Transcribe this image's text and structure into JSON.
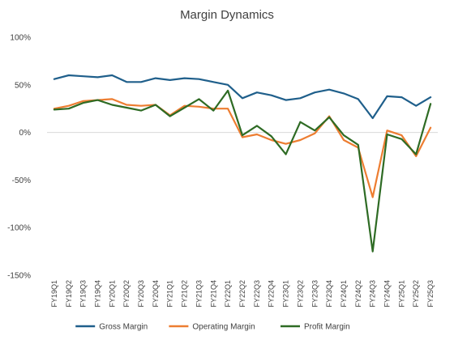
{
  "chart_data": {
    "type": "line",
    "title": "Margin Dynamics",
    "xlabel": "",
    "ylabel": "",
    "ylim": [
      -150,
      100
    ],
    "yticks": [
      100,
      50,
      0,
      -50,
      -100,
      -150
    ],
    "ytick_labels": [
      "100%",
      "50%",
      "0%",
      "-50%",
      "-100%",
      "-150%"
    ],
    "grid": false,
    "legend_position": "bottom",
    "x": [
      "FY19Q1",
      "FY19Q2",
      "FY19Q3",
      "FY19Q4",
      "FY20Q1",
      "FY20Q2",
      "FY20Q3",
      "FY20Q4",
      "FY21Q1",
      "FY21Q2",
      "FY21Q3",
      "FY21Q4",
      "FY22Q1",
      "FY22Q2",
      "FY22Q3",
      "FY22Q4",
      "FY23Q1",
      "FY23Q2",
      "FY23Q3",
      "FY23Q4",
      "FY24Q1",
      "FY24Q2",
      "FY24Q3",
      "FY24Q4",
      "FY25Q1",
      "FY25Q2",
      "FY25Q3"
    ],
    "x_tick_labels": [
      "FY19Q1",
      "FY19Q3",
      "FY20Q1",
      "FY20Q3",
      "FY21Q1",
      "FY21Q3",
      "FY22Q1",
      "FY22Q3",
      "FY23Q1",
      "FY23Q3",
      "FY24Q1",
      "FY24Q3",
      "FY25Q1",
      "FY25Q3",
      "FY19Q2",
      "FY19Q4",
      "FY20Q2",
      "FY20Q4",
      "FY21Q2",
      "FY21Q4",
      "FY22Q2",
      "FY22Q4",
      "FY23Q2",
      "FY23Q4",
      "FY24Q2",
      "FY24Q4",
      "FY25Q2"
    ],
    "series": [
      {
        "name": "Gross Margin",
        "color": "#1f5f8b",
        "values": [
          56,
          60,
          59,
          58,
          60,
          53,
          53,
          57,
          55,
          57,
          56,
          53,
          50,
          36,
          42,
          39,
          34,
          36,
          42,
          45,
          41,
          35,
          15,
          38,
          37,
          28,
          37
        ]
      },
      {
        "name": "Operating Margin",
        "color": "#ed7d31",
        "values": [
          25,
          28,
          33,
          34,
          35,
          29,
          28,
          29,
          18,
          28,
          27,
          25,
          25,
          -5,
          -2,
          -8,
          -12,
          -8,
          -1,
          17,
          -8,
          -16,
          -68,
          2,
          -3,
          -25,
          5
        ]
      },
      {
        "name": "Profit Margin",
        "color": "#2e6b24",
        "values": [
          24,
          25,
          31,
          34,
          29,
          26,
          23,
          29,
          17,
          26,
          35,
          23,
          44,
          -3,
          7,
          -4,
          -23,
          11,
          2,
          16,
          -3,
          -13,
          -125,
          -2,
          -7,
          -23,
          30
        ]
      }
    ]
  }
}
